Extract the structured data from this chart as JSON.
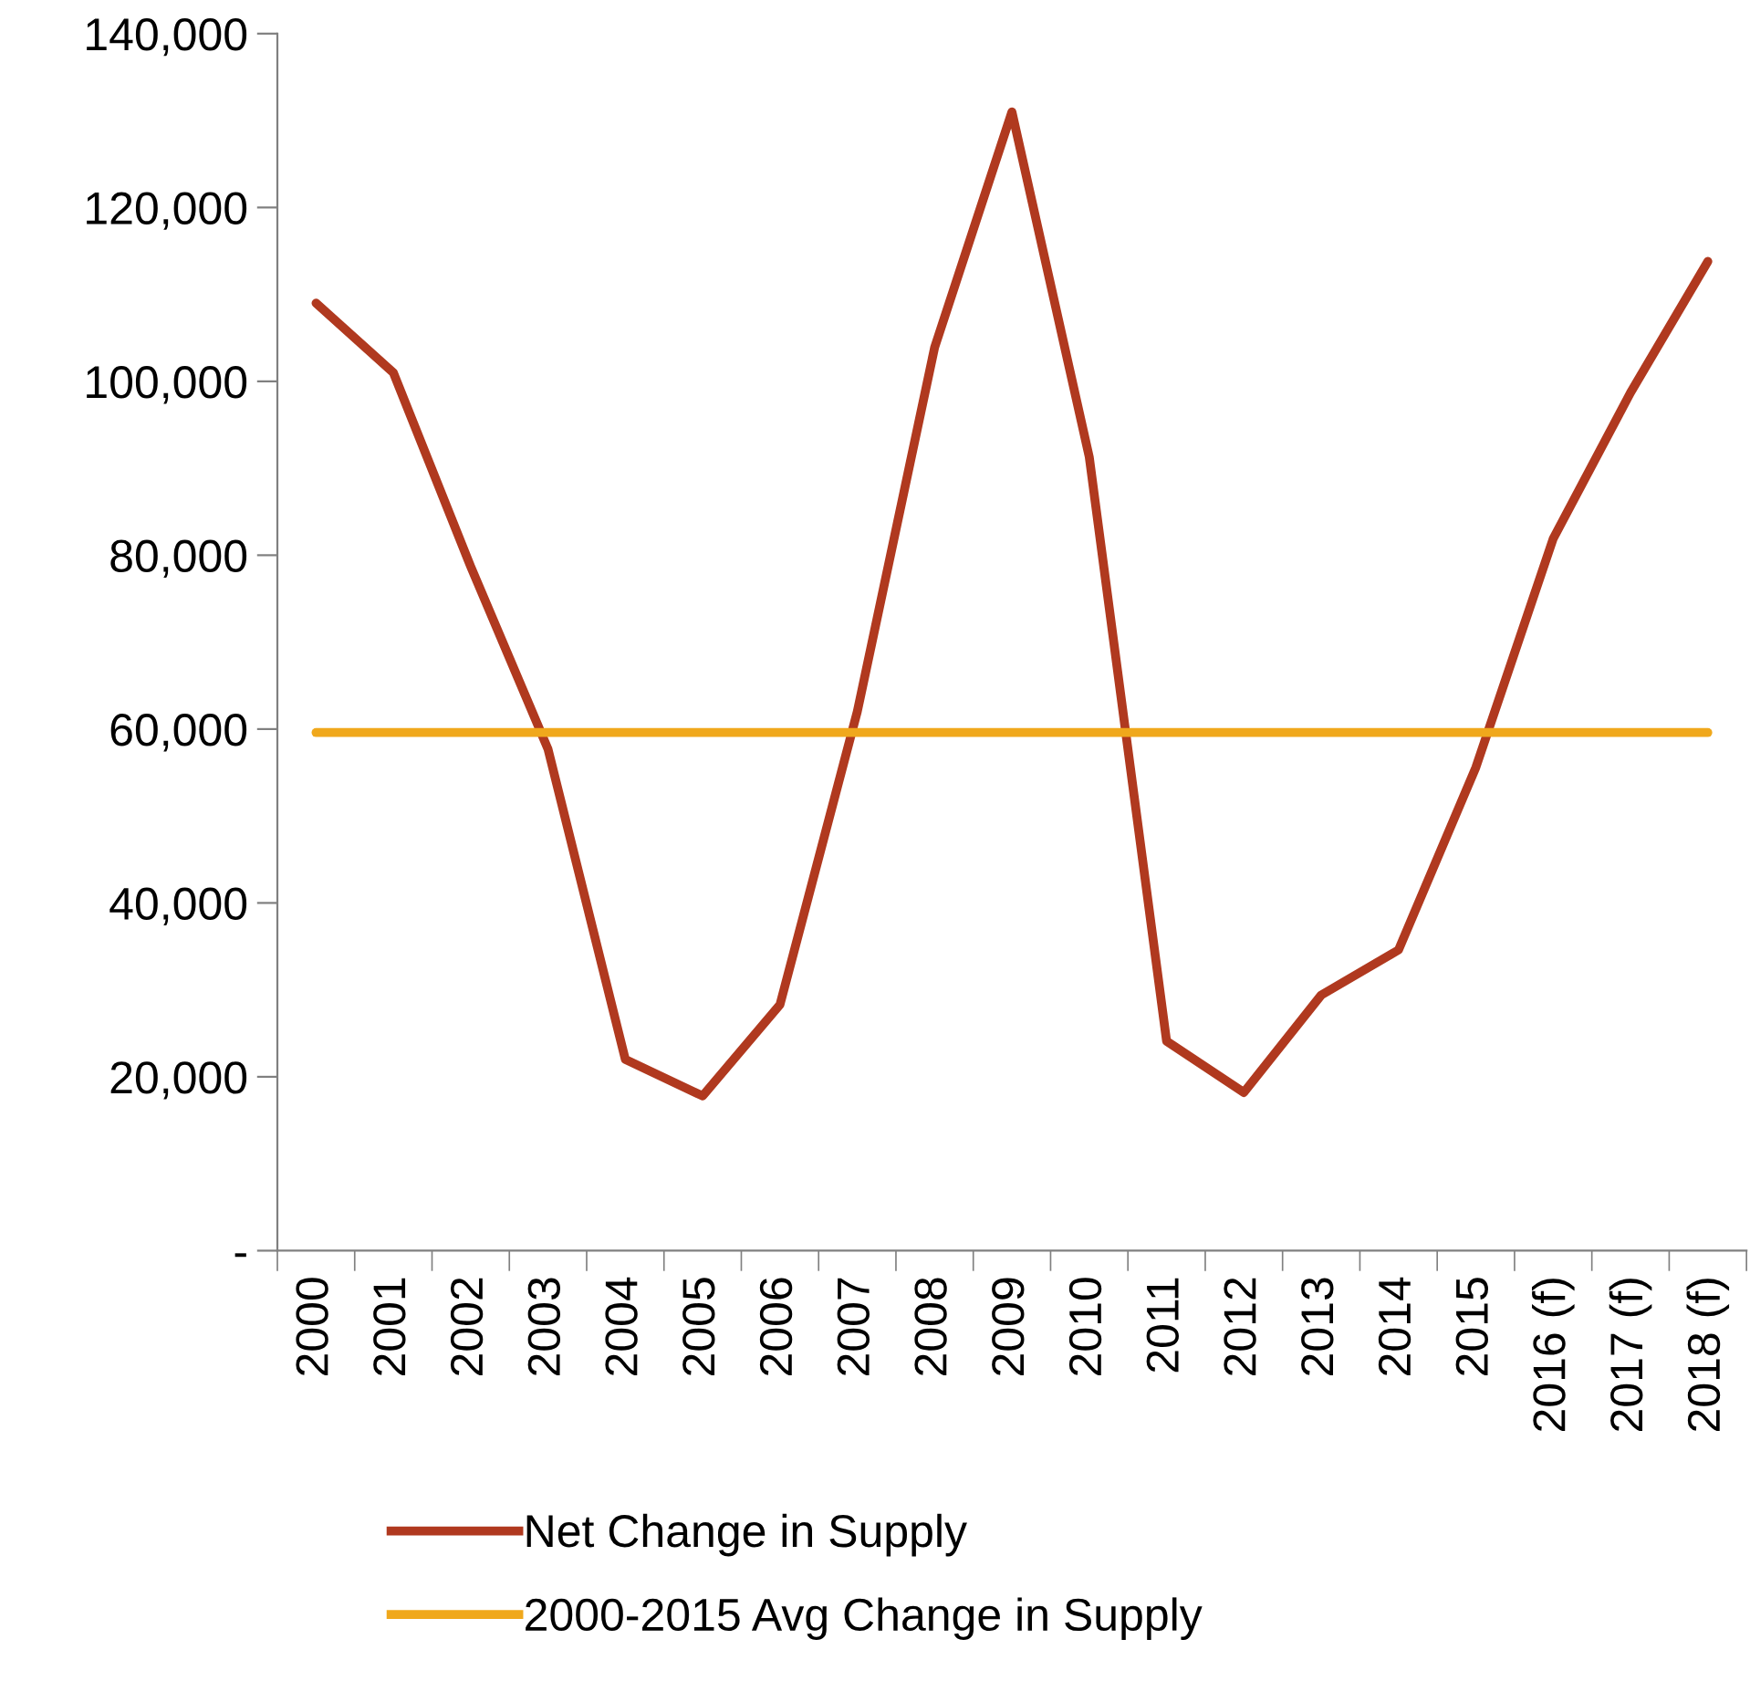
{
  "chart_data": {
    "type": "line",
    "categories": [
      "2000",
      "2001",
      "2002",
      "2003",
      "2004",
      "2005",
      "2006",
      "2007",
      "2008",
      "2009",
      "2010",
      "2011",
      "2012",
      "2013",
      "2014",
      "2015",
      "2016 (f)",
      "2017 (f)",
      "2018 (f)"
    ],
    "series": [
      {
        "name": "Net Change in Supply",
        "color": "#b0391f",
        "values": [
          109000,
          101000,
          78700,
          57700,
          22000,
          17800,
          28300,
          62000,
          103900,
          131000,
          91300,
          24100,
          18200,
          29400,
          34600,
          55600,
          81900,
          98700,
          113800
        ]
      },
      {
        "name": "2000-2015 Avg Change in Supply",
        "color": "#f0a81c",
        "values": [
          59600,
          59600,
          59600,
          59600,
          59600,
          59600,
          59600,
          59600,
          59600,
          59600,
          59600,
          59600,
          59600,
          59600,
          59600,
          59600,
          59600,
          59600,
          59600
        ]
      }
    ],
    "ylim": [
      0,
      140000
    ],
    "yticks": [
      {
        "value": 0,
        "label": "-"
      },
      {
        "value": 20000,
        "label": "20,000"
      },
      {
        "value": 40000,
        "label": "40,000"
      },
      {
        "value": 60000,
        "label": "60,000"
      },
      {
        "value": 80000,
        "label": "80,000"
      },
      {
        "value": 100000,
        "label": "100,000"
      },
      {
        "value": 120000,
        "label": "120,000"
      },
      {
        "value": 140000,
        "label": "140,000"
      }
    ],
    "grid": false,
    "legend": "bottom",
    "marker": "none",
    "line_style": "solid"
  }
}
